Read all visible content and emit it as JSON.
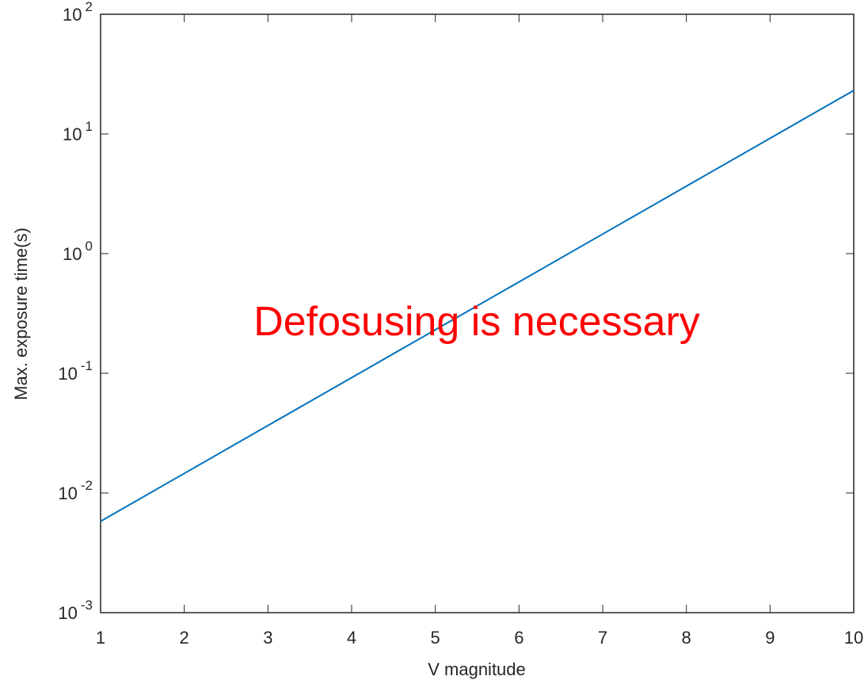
{
  "chart_data": {
    "type": "line",
    "log_y": true,
    "xlabel": "V magnitude",
    "ylabel": "Max. exposure time(s)",
    "annotation": "Defosusing is necessary",
    "x": [
      1,
      2,
      3,
      4,
      5,
      6,
      7,
      8,
      9,
      10
    ],
    "series": [
      {
        "color": "#0072bd",
        "values": [
          0.0058,
          0.01457,
          0.0366,
          0.092,
          0.231,
          0.58,
          1.457,
          3.66,
          9.2,
          23.1
        ]
      }
    ],
    "xlim": [
      1,
      10
    ],
    "xticks": [
      1,
      2,
      3,
      4,
      5,
      6,
      7,
      8,
      9,
      10
    ],
    "ylim": [
      0.001,
      100
    ],
    "yticks": [
      {
        "value": 0.001,
        "label": "10^-3"
      },
      {
        "value": 0.01,
        "label": "10^-2"
      },
      {
        "value": 0.1,
        "label": "10^-1"
      },
      {
        "value": 1,
        "label": "10^0"
      },
      {
        "value": 10,
        "label": "10^1"
      },
      {
        "value": 100,
        "label": "10^2"
      }
    ]
  }
}
